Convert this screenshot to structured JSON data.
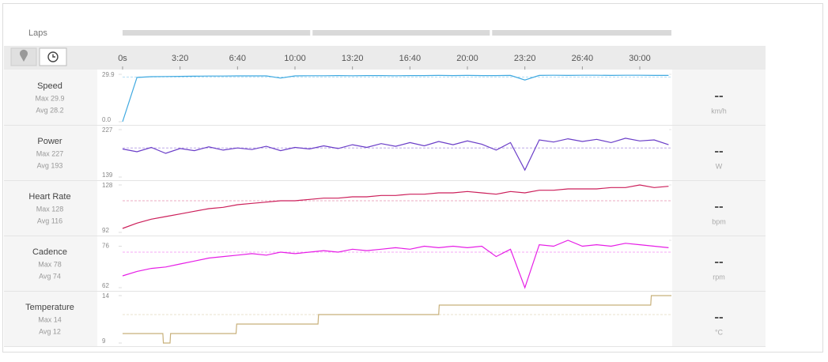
{
  "laps": {
    "label": "Laps",
    "segments": [
      [
        0,
        657
      ],
      [
        657,
        1282
      ],
      [
        1282,
        1910
      ]
    ]
  },
  "time_axis": {
    "xlim": [
      0,
      1910
    ],
    "xticks": [
      {
        "value": 0,
        "label": "0s"
      },
      {
        "value": 200,
        "label": "3:20"
      },
      {
        "value": 400,
        "label": "6:40"
      },
      {
        "value": 600,
        "label": "10:00"
      },
      {
        "value": 800,
        "label": "13:20"
      },
      {
        "value": 1000,
        "label": "16:40"
      },
      {
        "value": 1200,
        "label": "20:00"
      },
      {
        "value": 1400,
        "label": "23:20"
      },
      {
        "value": 1600,
        "label": "26:40"
      },
      {
        "value": 1800,
        "label": "30:00"
      }
    ]
  },
  "chart_data": [
    {
      "type": "line",
      "title": "Speed",
      "color": "#3fa9e0",
      "max": {
        "value": 29.9,
        "label": "Max 29.9"
      },
      "avg": {
        "value": 28.2,
        "label": "Avg 28.2"
      },
      "unit": "km/h",
      "current": "--",
      "ylim": [
        0,
        29.9
      ],
      "yticks": [
        29.9,
        {
          "value": 0,
          "label": "0.0"
        }
      ],
      "x": [
        0,
        50,
        100,
        150,
        200,
        250,
        300,
        350,
        400,
        450,
        500,
        550,
        600,
        650,
        700,
        750,
        800,
        850,
        900,
        950,
        1000,
        1050,
        1100,
        1150,
        1200,
        1250,
        1300,
        1350,
        1400,
        1450,
        1500,
        1550,
        1600,
        1650,
        1700,
        1750,
        1800,
        1850,
        1900
      ],
      "values": [
        0,
        27.9,
        28.4,
        28.5,
        28.6,
        28.7,
        28.8,
        28.8,
        28.9,
        28.9,
        28.9,
        27.5,
        28.9,
        29.0,
        29.0,
        29.1,
        29.0,
        29.1,
        29.1,
        29.0,
        29.1,
        29.1,
        29.2,
        29.1,
        29.2,
        29.1,
        29.1,
        29.2,
        26.3,
        29.2,
        29.3,
        29.2,
        29.3,
        29.3,
        29.2,
        29.3,
        29.3,
        29.2,
        29.2
      ]
    },
    {
      "type": "line",
      "title": "Power",
      "color": "#6a3dc8",
      "max": {
        "value": 227,
        "label": "Max 227"
      },
      "avg": {
        "value": 193,
        "label": "Avg 193"
      },
      "unit": "W",
      "current": "--",
      "ylim": [
        139,
        227
      ],
      "yticks": [
        227,
        139
      ],
      "x": [
        0,
        50,
        100,
        150,
        200,
        250,
        300,
        350,
        400,
        450,
        500,
        550,
        600,
        650,
        700,
        750,
        800,
        850,
        900,
        950,
        1000,
        1050,
        1100,
        1150,
        1200,
        1250,
        1300,
        1350,
        1400,
        1450,
        1500,
        1550,
        1600,
        1650,
        1700,
        1750,
        1800,
        1850,
        1900
      ],
      "values": [
        191,
        186,
        194,
        183,
        192,
        188,
        195,
        189,
        193,
        190,
        196,
        188,
        194,
        191,
        197,
        192,
        199,
        194,
        201,
        196,
        203,
        197,
        205,
        199,
        206,
        200,
        189,
        203,
        152,
        208,
        204,
        210,
        205,
        209,
        203,
        211,
        206,
        208,
        199
      ]
    },
    {
      "type": "line",
      "title": "Heart Rate",
      "color": "#cc1f5a",
      "max": {
        "value": 128,
        "label": "Max 128"
      },
      "avg": {
        "value": 116,
        "label": "Avg 116"
      },
      "unit": "bpm",
      "current": "--",
      "ylim": [
        92,
        128
      ],
      "yticks": [
        128,
        92
      ],
      "x": [
        0,
        50,
        100,
        150,
        200,
        250,
        300,
        350,
        400,
        450,
        500,
        550,
        600,
        650,
        700,
        750,
        800,
        850,
        900,
        950,
        1000,
        1050,
        1100,
        1150,
        1200,
        1250,
        1300,
        1350,
        1400,
        1450,
        1500,
        1550,
        1600,
        1650,
        1700,
        1750,
        1800,
        1850,
        1900
      ],
      "values": [
        95,
        99,
        102,
        104,
        106,
        108,
        110,
        111,
        113,
        114,
        115,
        116,
        116,
        117,
        118,
        118,
        119,
        119,
        120,
        120,
        121,
        121,
        122,
        122,
        123,
        122,
        121,
        123,
        122,
        124,
        124,
        125,
        125,
        125,
        126,
        126,
        128,
        126,
        127
      ]
    },
    {
      "type": "line",
      "title": "Cadence",
      "color": "#e61ee6",
      "max": {
        "value": 78,
        "label": "Max 78"
      },
      "avg": {
        "value": 74,
        "label": "Avg 74"
      },
      "unit": "rpm",
      "current": "--",
      "ylim": [
        62,
        78
      ],
      "yticks": [
        76,
        62
      ],
      "x": [
        0,
        50,
        100,
        150,
        200,
        250,
        300,
        350,
        400,
        450,
        500,
        550,
        600,
        650,
        700,
        750,
        800,
        850,
        900,
        950,
        1000,
        1050,
        1100,
        1150,
        1200,
        1250,
        1300,
        1350,
        1400,
        1450,
        1500,
        1550,
        1600,
        1650,
        1700,
        1750,
        1800,
        1850,
        1900
      ],
      "values": [
        66,
        67.5,
        68.5,
        69,
        70,
        71,
        72,
        72.5,
        73,
        73.5,
        73,
        74,
        73.5,
        74,
        74.5,
        74,
        75,
        74.5,
        75,
        75.5,
        75,
        76,
        75.5,
        76,
        75.5,
        76,
        72.5,
        75,
        62,
        76.5,
        76,
        78,
        76,
        76.5,
        76,
        77,
        76.5,
        76,
        75.5
      ]
    },
    {
      "type": "line",
      "title": "Temperature",
      "color": "#c8b07a",
      "max": {
        "value": 14,
        "label": "Max 14"
      },
      "avg": {
        "value": 12,
        "label": "Avg 12"
      },
      "unit": "°C",
      "current": "--",
      "ylim": [
        9,
        14
      ],
      "yticks": [
        14,
        9
      ],
      "x": [
        0,
        140,
        142,
        165,
        167,
        395,
        397,
        680,
        682,
        1100,
        1102,
        1838,
        1840,
        1910
      ],
      "values": [
        10,
        10,
        9,
        9,
        10,
        10,
        11,
        11,
        12,
        12,
        13,
        13,
        14,
        14
      ]
    }
  ]
}
